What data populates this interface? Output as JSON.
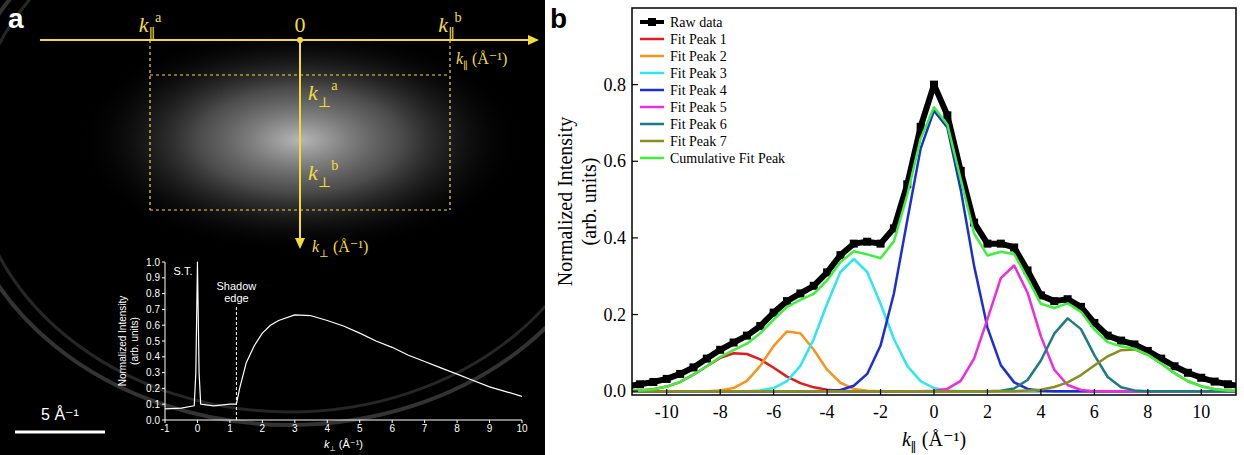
{
  "panel_labels": [
    "a",
    "b"
  ],
  "image_overlay": {
    "h_axis": {
      "labels": [
        {
          "base": "k",
          "sub": "∥",
          "sup": "a"
        },
        0,
        {
          "base": "k",
          "sub": "∥",
          "sup": "b"
        }
      ],
      "title": "k∥ (Å⁻¹)"
    },
    "v_axis": {
      "labels": [
        {
          "base": "k",
          "sub": "⊥",
          "sup": "a"
        },
        {
          "base": "k",
          "sub": "⊥",
          "sup": "b"
        }
      ],
      "title": "k⊥ (Å⁻¹)"
    },
    "scale_bar": "5 Å⁻¹"
  },
  "chart_data": [
    {
      "type": "line",
      "xlabel": "k⊥ (Å⁻¹)",
      "ylabel": "Normalized Intensity (arb. units)",
      "x": [
        -1,
        -0.5,
        -0.1,
        -0.05,
        0,
        0.05,
        0.1,
        0.5,
        1,
        1.2,
        1.3,
        1.5,
        1.75,
        2,
        2.25,
        2.5,
        3,
        3.5,
        4,
        4.5,
        5,
        5.5,
        6,
        6.5,
        7,
        7.5,
        8,
        8.5,
        9,
        9.5,
        10
      ],
      "values": [
        0.07,
        0.075,
        0.09,
        0.3,
        1.0,
        0.3,
        0.1,
        0.09,
        0.1,
        0.1,
        0.2,
        0.36,
        0.47,
        0.55,
        0.6,
        0.63,
        0.665,
        0.66,
        0.63,
        0.595,
        0.55,
        0.5,
        0.46,
        0.41,
        0.37,
        0.33,
        0.29,
        0.25,
        0.21,
        0.18,
        0.15
      ],
      "color": "#ffffff",
      "xlim": [
        -1,
        10
      ],
      "ylim": [
        0,
        1
      ],
      "xticks": [
        -1,
        0,
        1,
        2,
        3,
        4,
        5,
        6,
        7,
        8,
        9,
        10
      ],
      "yticks": [
        {
          "value": 0,
          "label": "0.0"
        },
        {
          "value": 0.1,
          "label": "0.1"
        },
        {
          "value": 0.2,
          "label": "0.2"
        },
        {
          "value": 0.3,
          "label": "0.3"
        },
        {
          "value": 0.4,
          "label": "0.4"
        },
        {
          "value": 0.5,
          "label": "0.5"
        },
        {
          "value": 0.6,
          "label": "0.6"
        },
        {
          "value": 0.7,
          "label": "0.7"
        },
        {
          "value": 0.8,
          "label": "0.8"
        },
        {
          "value": 0.9,
          "label": "0.9"
        },
        {
          "value": 1,
          "label": "1.0"
        }
      ],
      "annotations": [
        {
          "text": "S.T.",
          "x": 0,
          "y": 0.92
        },
        {
          "text": "Shadow edge",
          "x": 1.2,
          "y": 0.72
        }
      ]
    },
    {
      "type": "line",
      "xlabel": "k∥ (Å⁻¹)",
      "ylabel": "Normalized Intensity (arb. units)",
      "x": [
        -11.5,
        -11,
        -10.5,
        -10,
        -9.5,
        -9,
        -8.5,
        -8,
        -7.5,
        -7,
        -6.5,
        -6,
        -5.5,
        -5,
        -4.5,
        -4,
        -3.5,
        -3,
        -2.5,
        -2,
        -1.5,
        -1,
        -0.5,
        0,
        0.5,
        1,
        1.5,
        2,
        2.5,
        3,
        3.5,
        4,
        4.5,
        5,
        5.5,
        6,
        6.5,
        7,
        7.5,
        8,
        8.5,
        9,
        9.5,
        10,
        10.5,
        11,
        11.5
      ],
      "xlim": [
        -11.3,
        11.3
      ],
      "ylim": [
        -0.01,
        1.0
      ],
      "xticks": [
        -10,
        -8,
        -6,
        -4,
        -2,
        0,
        2,
        4,
        6,
        8,
        10
      ],
      "yticks": [
        {
          "value": 0,
          "label": "0.0"
        },
        {
          "value": 0.2,
          "label": "0.2"
        },
        {
          "value": 0.4,
          "label": "0.4"
        },
        {
          "value": 0.6,
          "label": "0.6"
        },
        {
          "value": 0.8,
          "label": "0.8"
        }
      ],
      "legend": "upper left",
      "series": [
        {
          "name": "Raw data",
          "color": "#000000",
          "type": "line",
          "marker": "square",
          "line_style": "solid",
          "values": [
            0.012,
            0.018,
            0.024,
            0.032,
            0.045,
            0.062,
            0.085,
            0.108,
            0.127,
            0.145,
            0.17,
            0.205,
            0.235,
            0.255,
            0.275,
            0.31,
            0.355,
            0.385,
            0.39,
            0.385,
            0.425,
            0.54,
            0.69,
            0.8,
            0.72,
            0.575,
            0.44,
            0.385,
            0.385,
            0.375,
            0.315,
            0.25,
            0.235,
            0.24,
            0.22,
            0.178,
            0.145,
            0.132,
            0.122,
            0.105,
            0.085,
            0.065,
            0.048,
            0.035,
            0.025,
            0.018,
            0.013
          ]
        },
        {
          "name": "Fit Peak 1",
          "color": "#e41a1c",
          "type": "line",
          "line_style": "solid",
          "values": [
            0.001,
            0.002,
            0.005,
            0.012,
            0.024,
            0.043,
            0.065,
            0.087,
            0.099,
            0.097,
            0.083,
            0.061,
            0.038,
            0.021,
            0.01,
            0.004,
            0.001,
            0,
            0,
            0,
            0,
            0,
            0,
            0,
            0,
            0,
            0,
            0,
            0,
            0,
            0,
            0,
            0,
            0,
            0,
            0,
            0,
            0,
            0,
            0,
            0,
            0,
            0,
            0,
            0,
            0,
            0
          ]
        },
        {
          "name": "Fit Peak 2",
          "color": "#f7941d",
          "type": "line",
          "line_style": "solid",
          "values": [
            0,
            0,
            0,
            0,
            0,
            0,
            0,
            0.002,
            0.008,
            0.027,
            0.066,
            0.118,
            0.156,
            0.151,
            0.108,
            0.056,
            0.022,
            0.006,
            0.001,
            0,
            0,
            0,
            0,
            0,
            0,
            0,
            0,
            0,
            0,
            0,
            0,
            0,
            0,
            0,
            0,
            0,
            0,
            0,
            0,
            0,
            0,
            0,
            0,
            0,
            0,
            0,
            0
          ]
        },
        {
          "name": "Fit Peak 3",
          "color": "#2ee6ef",
          "type": "line",
          "line_style": "solid",
          "values": [
            0,
            0,
            0,
            0,
            0,
            0,
            0,
            0,
            0,
            0,
            0.002,
            0.008,
            0.026,
            0.066,
            0.136,
            0.228,
            0.311,
            0.345,
            0.311,
            0.228,
            0.136,
            0.066,
            0.026,
            0.008,
            0.002,
            0,
            0,
            0,
            0,
            0,
            0,
            0,
            0,
            0,
            0,
            0,
            0,
            0,
            0,
            0,
            0,
            0,
            0,
            0,
            0,
            0,
            0
          ]
        },
        {
          "name": "Fit Peak 4",
          "color": "#1c2fd6",
          "type": "line",
          "line_style": "solid",
          "values": [
            0,
            0,
            0,
            0,
            0,
            0,
            0,
            0,
            0,
            0,
            0,
            0,
            0,
            0,
            0,
            0.001,
            0.003,
            0.014,
            0.045,
            0.119,
            0.255,
            0.446,
            0.633,
            0.732,
            0.688,
            0.526,
            0.327,
            0.166,
            0.068,
            0.023,
            0.006,
            0.001,
            0,
            0,
            0,
            0,
            0,
            0,
            0,
            0,
            0,
            0,
            0,
            0,
            0,
            0,
            0
          ]
        },
        {
          "name": "Fit Peak 5",
          "color": "#ee2bde",
          "type": "line",
          "line_style": "solid",
          "values": [
            0,
            0,
            0,
            0,
            0,
            0,
            0,
            0,
            0,
            0,
            0,
            0,
            0,
            0,
            0,
            0,
            0,
            0,
            0,
            0,
            0,
            0,
            0,
            0.001,
            0.006,
            0.027,
            0.085,
            0.188,
            0.295,
            0.328,
            0.257,
            0.143,
            0.056,
            0.016,
            0.003,
            0,
            0,
            0,
            0,
            0,
            0,
            0,
            0,
            0,
            0,
            0,
            0
          ]
        },
        {
          "name": "Fit Peak 6",
          "color": "#1b7c85",
          "type": "line",
          "line_style": "solid",
          "values": [
            0,
            0,
            0,
            0,
            0,
            0,
            0,
            0,
            0,
            0,
            0,
            0,
            0,
            0,
            0,
            0,
            0,
            0,
            0,
            0,
            0,
            0,
            0,
            0,
            0,
            0,
            0,
            0,
            0.001,
            0.007,
            0.029,
            0.08,
            0.15,
            0.19,
            0.162,
            0.094,
            0.037,
            0.01,
            0.002,
            0,
            0,
            0,
            0,
            0,
            0,
            0,
            0
          ]
        },
        {
          "name": "Fit Peak 7",
          "color": "#8b8b1e",
          "type": "line",
          "line_style": "solid",
          "values": [
            0,
            0,
            0,
            0,
            0,
            0,
            0,
            0,
            0,
            0,
            0,
            0,
            0,
            0,
            0,
            0,
            0,
            0,
            0,
            0,
            0,
            0,
            0,
            0,
            0,
            0,
            0,
            0,
            0,
            0,
            0.002,
            0.004,
            0.011,
            0.023,
            0.042,
            0.067,
            0.091,
            0.107,
            0.109,
            0.095,
            0.072,
            0.047,
            0.026,
            0.013,
            0.005,
            0.002,
            0.001
          ]
        },
        {
          "name": "Cumulative Fit Peak",
          "color": "#3cf03c",
          "type": "line",
          "line_style": "solid",
          "values": [
            0.001,
            0.002,
            0.005,
            0.012,
            0.024,
            0.043,
            0.065,
            0.089,
            0.107,
            0.124,
            0.151,
            0.187,
            0.22,
            0.238,
            0.254,
            0.289,
            0.337,
            0.365,
            0.357,
            0.347,
            0.391,
            0.512,
            0.659,
            0.741,
            0.696,
            0.553,
            0.412,
            0.354,
            0.364,
            0.358,
            0.294,
            0.228,
            0.217,
            0.229,
            0.207,
            0.161,
            0.128,
            0.117,
            0.111,
            0.095,
            0.072,
            0.047,
            0.026,
            0.013,
            0.005,
            0.002,
            0.001
          ]
        }
      ]
    }
  ]
}
